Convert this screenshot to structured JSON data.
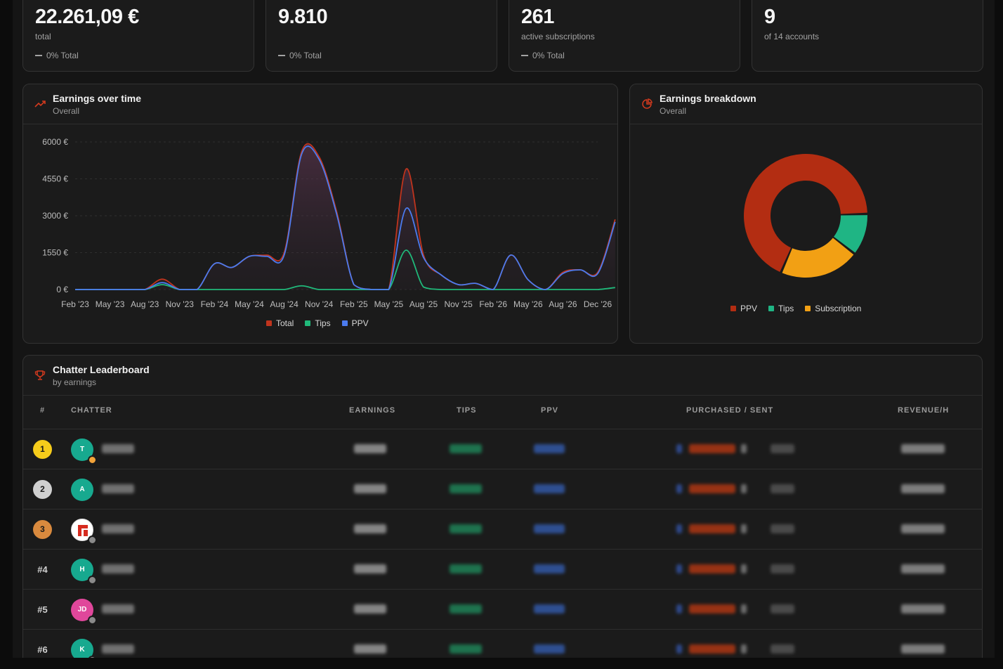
{
  "stats": [
    {
      "value": "22.261,09 €",
      "sub": "total",
      "delta": "0% Total"
    },
    {
      "value": "9.810",
      "sub": "",
      "delta": "0% Total"
    },
    {
      "value": "261",
      "sub": "active subscriptions",
      "delta": "0% Total"
    },
    {
      "value": "9",
      "sub": "of 14 accounts",
      "delta": ""
    }
  ],
  "earnings_chart": {
    "title": "Earnings over time",
    "subtitle": "Overall",
    "icon": "trending-up-icon"
  },
  "breakdown_chart": {
    "title": "Earnings breakdown",
    "subtitle": "Overall",
    "icon": "pie-chart-icon"
  },
  "chart_data": [
    {
      "type": "area",
      "title": "Earnings over time",
      "x_ticks": [
        "Feb '23",
        "May '23",
        "Aug '23",
        "Nov '23",
        "Feb '24",
        "May '24",
        "Aug '24",
        "Nov '24",
        "Feb '25",
        "May '25",
        "Aug '25",
        "Nov '25",
        "Feb '26",
        "May '26",
        "Aug '26",
        "Dec '26"
      ],
      "y_ticks": [
        "6000 €",
        "4550 €",
        "3000 €",
        "1550 €",
        "0 €"
      ],
      "ylim": [
        0,
        6000
      ],
      "grid": true,
      "legend": "bottom",
      "x": [
        0,
        0.5,
        1,
        1.5,
        2,
        2.5,
        3,
        3.5,
        4,
        4.5,
        5,
        5.5,
        6,
        6.5,
        7,
        7.5,
        8,
        8.5,
        9,
        9.5,
        10,
        10.5,
        11,
        11.5,
        12,
        12.5,
        13,
        13.5,
        14,
        14.5,
        15,
        15.5
      ],
      "series": [
        {
          "name": "Total",
          "color": "#c0341d",
          "values": [
            0,
            0,
            0,
            0,
            0,
            420,
            0,
            0,
            1050,
            900,
            1350,
            1400,
            1500,
            5600,
            5400,
            3200,
            200,
            0,
            0,
            4900,
            1400,
            600,
            200,
            250,
            0,
            1400,
            400,
            0,
            700,
            800,
            700,
            2850
          ]
        },
        {
          "name": "Tips",
          "color": "#20b97a",
          "values": [
            0,
            0,
            0,
            0,
            0,
            200,
            0,
            0,
            0,
            0,
            0,
            0,
            0,
            150,
            0,
            0,
            0,
            0,
            0,
            1600,
            100,
            0,
            0,
            0,
            0,
            0,
            0,
            0,
            0,
            0,
            0,
            80
          ]
        },
        {
          "name": "PPV",
          "color": "#4b7bef",
          "values": [
            0,
            0,
            0,
            0,
            0,
            280,
            0,
            0,
            1050,
            900,
            1350,
            1350,
            1400,
            5500,
            5300,
            3100,
            200,
            0,
            0,
            3300,
            1300,
            600,
            200,
            250,
            0,
            1400,
            400,
            0,
            650,
            800,
            650,
            2750
          ]
        }
      ]
    },
    {
      "type": "pie",
      "title": "Earnings breakdown",
      "labels": [
        "PPV",
        "Tips",
        "Subscription"
      ],
      "values": [
        68,
        11,
        21
      ],
      "colors": [
        "#b32d12",
        "#1fb584",
        "#f2a014"
      ],
      "legend": "bottom"
    }
  ],
  "leaderboard": {
    "title": "Chatter Leaderboard",
    "subtitle": "by earnings",
    "icon": "trophy-icon",
    "columns": [
      "#",
      "CHATTER",
      "EARNINGS",
      "TIPS",
      "PPV",
      "PURCHASED / SENT",
      "REVENUE/H"
    ],
    "rows": [
      {
        "rank": "1",
        "initials": "T",
        "avatar_color": "#17a98f",
        "status": "#f2a33a"
      },
      {
        "rank": "2",
        "initials": "A",
        "avatar_color": "#17a98f",
        "status": ""
      },
      {
        "rank": "3",
        "initials": "",
        "avatar_color": "#ffffff",
        "status": "#8a8a8a"
      },
      {
        "rank": "#4",
        "initials": "H",
        "avatar_color": "#17a98f",
        "status": "#8a8a8a"
      },
      {
        "rank": "#5",
        "initials": "JD",
        "avatar_color": "#e0479b",
        "status": "#8a8a8a"
      },
      {
        "rank": "#6",
        "initials": "K",
        "avatar_color": "#17a98f",
        "status": "#8a8a8a"
      }
    ]
  }
}
